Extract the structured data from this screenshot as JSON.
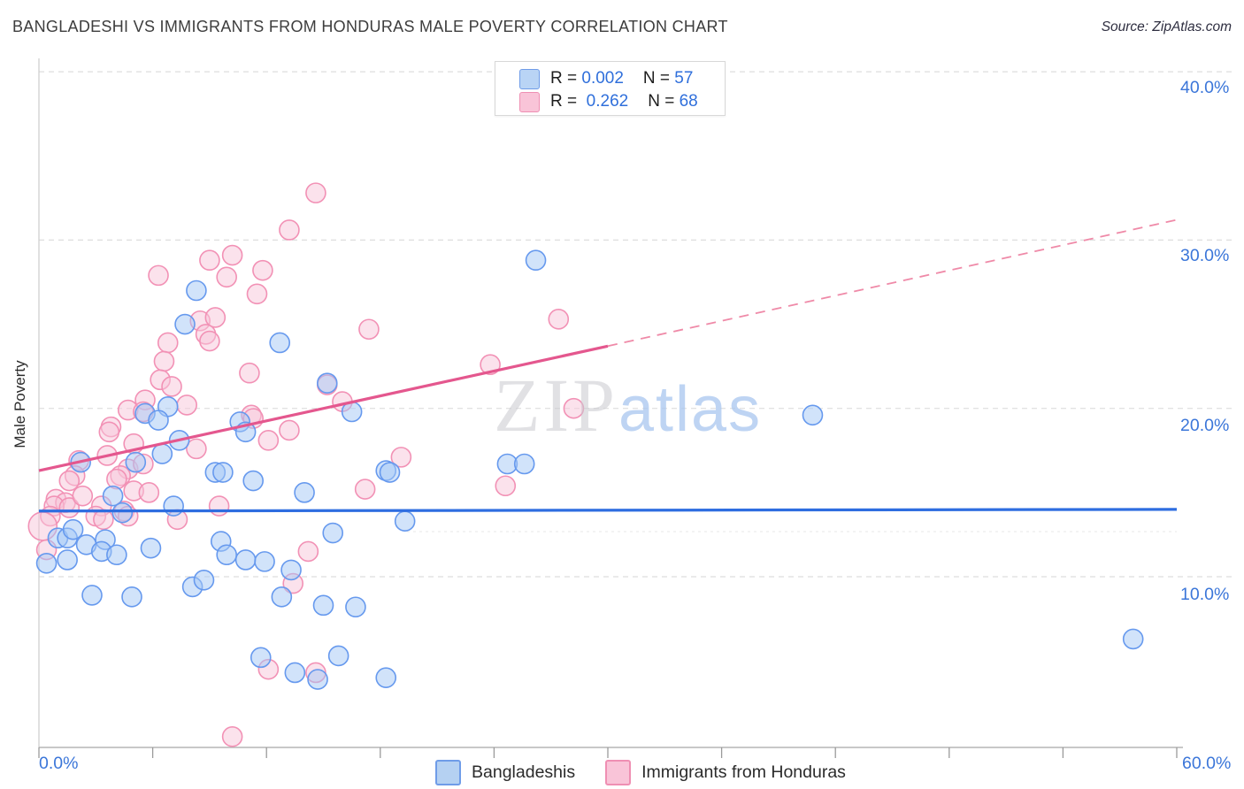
{
  "header": {
    "title": "BANGLADESHI VS IMMIGRANTS FROM HONDURAS MALE POVERTY CORRELATION CHART",
    "source": "Source: ZipAtlas.com"
  },
  "ylabel": "Male Poverty",
  "watermark": {
    "zip": "ZIP",
    "atlas": "atlas"
  },
  "legend_box": {
    "series": [
      {
        "r_label": "R = ",
        "r": "0.002",
        "n_label": "N = ",
        "n": "57"
      },
      {
        "r_label": "R =  ",
        "r": "0.262",
        "n_label": "N = ",
        "n": "68"
      }
    ]
  },
  "axis": {
    "y_ticks": [
      "40.0%",
      "30.0%",
      "20.0%",
      "10.0%"
    ],
    "x_left": "0.0%",
    "x_right": "60.0%"
  },
  "bottom_legend": [
    {
      "label": "Bangladeshis",
      "color": "blue"
    },
    {
      "label": "Immigrants from Honduras",
      "color": "pink"
    }
  ],
  "colors": {
    "blue_stroke": "#6699ee",
    "blue_fill": "rgba(164,199,245,0.5)",
    "pink_stroke": "#f291b5",
    "pink_fill": "rgba(248,198,218,0.5)",
    "blue_trend": "#2e6de0",
    "pink_trend": "#e4578e",
    "pink_trend_dashed": "#ef8aa8",
    "gridline": "#dedede",
    "axis_line": "#b5b5b5",
    "tick_label_blue": "#3b76d9"
  },
  "chart_data": {
    "type": "scatter",
    "xlabel": "",
    "ylabel": "Male Poverty",
    "xlim": [
      0,
      60
    ],
    "ylim": [
      0,
      40.8
    ],
    "y_gridlines": [
      40,
      30,
      20,
      10
    ],
    "x_tick_count": 11,
    "legend_position": "bottom",
    "series": [
      {
        "name": "Immigrants from Honduras",
        "color": "pink",
        "r": 0.262,
        "n": 68,
        "points": [
          [
            14.6,
            32.8
          ],
          [
            13.2,
            30.6
          ],
          [
            9.0,
            28.8
          ],
          [
            10.2,
            29.1
          ],
          [
            11.8,
            28.2
          ],
          [
            6.3,
            27.9
          ],
          [
            9.9,
            27.8
          ],
          [
            11.5,
            26.8
          ],
          [
            8.5,
            25.2
          ],
          [
            9.3,
            25.4
          ],
          [
            8.8,
            24.4
          ],
          [
            9.0,
            24.0
          ],
          [
            6.8,
            23.9
          ],
          [
            6.6,
            22.8
          ],
          [
            6.4,
            21.7
          ],
          [
            7.0,
            21.3
          ],
          [
            17.4,
            24.7
          ],
          [
            11.1,
            22.1
          ],
          [
            5.6,
            20.5
          ],
          [
            4.7,
            19.9
          ],
          [
            5.5,
            19.8
          ],
          [
            7.8,
            20.2
          ],
          [
            3.8,
            18.9
          ],
          [
            3.7,
            18.6
          ],
          [
            11.2,
            19.6
          ],
          [
            11.3,
            19.4
          ],
          [
            13.2,
            18.7
          ],
          [
            12.1,
            18.1
          ],
          [
            5.0,
            17.9
          ],
          [
            8.3,
            17.6
          ],
          [
            15.2,
            21.4
          ],
          [
            16.0,
            20.4
          ],
          [
            19.1,
            17.1
          ],
          [
            2.1,
            16.9
          ],
          [
            3.6,
            17.2
          ],
          [
            1.9,
            16.0
          ],
          [
            1.6,
            15.7
          ],
          [
            4.7,
            16.4
          ],
          [
            4.3,
            16.0
          ],
          [
            5.5,
            16.7
          ],
          [
            27.4,
            25.3
          ],
          [
            23.8,
            22.6
          ],
          [
            28.2,
            20.0
          ],
          [
            24.6,
            15.4
          ],
          [
            4.1,
            15.8
          ],
          [
            5.0,
            15.1
          ],
          [
            5.8,
            15.0
          ],
          [
            0.9,
            14.6
          ],
          [
            1.4,
            14.4
          ],
          [
            0.8,
            14.2
          ],
          [
            1.6,
            14.1
          ],
          [
            0.6,
            13.6
          ],
          [
            2.3,
            14.8
          ],
          [
            3.3,
            14.2
          ],
          [
            3.0,
            13.6
          ],
          [
            3.4,
            13.4
          ],
          [
            4.5,
            13.9
          ],
          [
            4.7,
            13.6
          ],
          [
            0.2,
            13.0,
            16
          ],
          [
            0.4,
            11.6
          ],
          [
            9.5,
            14.2
          ],
          [
            7.3,
            13.4
          ],
          [
            14.2,
            11.5
          ],
          [
            13.4,
            9.6
          ],
          [
            12.1,
            4.5
          ],
          [
            14.6,
            4.3
          ],
          [
            17.2,
            15.2
          ],
          [
            10.2,
            0.5
          ]
        ]
      },
      {
        "name": "Bangladeshis",
        "color": "blue",
        "r": 0.002,
        "n": 57,
        "points": [
          [
            26.2,
            28.8
          ],
          [
            8.3,
            27.0
          ],
          [
            7.7,
            25.0
          ],
          [
            12.7,
            23.9
          ],
          [
            15.2,
            21.5
          ],
          [
            6.8,
            20.1
          ],
          [
            5.6,
            19.7
          ],
          [
            6.3,
            19.3
          ],
          [
            7.4,
            18.1
          ],
          [
            10.6,
            19.2
          ],
          [
            10.9,
            18.6
          ],
          [
            16.5,
            19.8
          ],
          [
            2.2,
            16.8
          ],
          [
            5.1,
            16.8
          ],
          [
            6.5,
            17.3
          ],
          [
            9.3,
            16.2
          ],
          [
            9.7,
            16.2
          ],
          [
            11.3,
            15.7
          ],
          [
            18.3,
            16.3
          ],
          [
            24.7,
            16.7
          ],
          [
            25.6,
            16.7
          ],
          [
            14.0,
            15.0
          ],
          [
            7.1,
            14.2
          ],
          [
            3.9,
            14.8
          ],
          [
            4.4,
            13.8
          ],
          [
            1.0,
            12.3
          ],
          [
            1.5,
            12.3
          ],
          [
            1.8,
            12.8
          ],
          [
            2.5,
            11.9
          ],
          [
            3.5,
            12.2
          ],
          [
            3.3,
            11.5
          ],
          [
            4.1,
            11.3
          ],
          [
            1.5,
            11.0
          ],
          [
            0.4,
            10.8
          ],
          [
            5.9,
            11.7
          ],
          [
            9.6,
            12.1
          ],
          [
            9.9,
            11.3
          ],
          [
            10.9,
            11.0
          ],
          [
            11.9,
            10.9
          ],
          [
            13.3,
            10.4
          ],
          [
            12.8,
            8.8
          ],
          [
            8.1,
            9.4
          ],
          [
            8.7,
            9.8
          ],
          [
            2.8,
            8.9
          ],
          [
            4.9,
            8.8
          ],
          [
            15.0,
            8.3
          ],
          [
            16.7,
            8.2
          ],
          [
            11.7,
            5.2
          ],
          [
            13.5,
            4.3
          ],
          [
            14.7,
            3.9
          ],
          [
            15.8,
            5.3
          ],
          [
            18.3,
            4.0
          ],
          [
            19.3,
            13.3
          ],
          [
            18.5,
            16.2
          ],
          [
            15.5,
            12.6
          ],
          [
            40.8,
            19.6
          ],
          [
            57.7,
            6.3
          ]
        ]
      }
    ],
    "trend_lines": [
      {
        "series": "Bangladeshis",
        "x1": 0,
        "y1": 13.9,
        "x2": 60,
        "y2": 14.0,
        "style": "solid"
      },
      {
        "series": "Immigrants from Honduras",
        "x1": 0,
        "y1": 16.3,
        "x2": 30,
        "y2": 23.7,
        "style": "solid"
      },
      {
        "series": "Immigrants from Honduras",
        "x1": 30,
        "y1": 23.7,
        "x2": 60,
        "y2": 31.2,
        "style": "dashed"
      }
    ]
  }
}
